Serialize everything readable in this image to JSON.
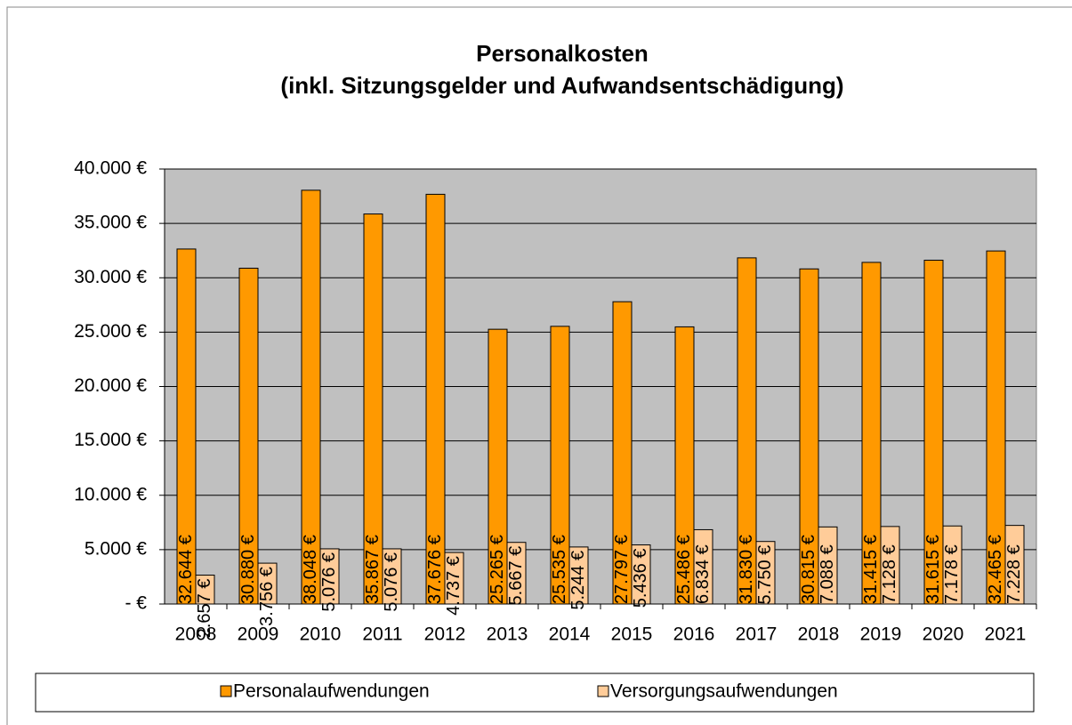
{
  "chart_data": {
    "type": "bar",
    "title": [
      "Personalkosten",
      "(inkl. Sitzungsgelder und Aufwandsentschädigung)"
    ],
    "categories": [
      "2008",
      "2009",
      "2010",
      "2011",
      "2012",
      "2013",
      "2014",
      "2015",
      "2016",
      "2017",
      "2018",
      "2019",
      "2020",
      "2021"
    ],
    "series": [
      {
        "name": "Personalaufwendungen",
        "color": "#ff9900",
        "values": [
          32644,
          30880,
          38048,
          35867,
          37676,
          25265,
          25535,
          27797,
          25486,
          31830,
          30815,
          31415,
          31615,
          32465
        ],
        "value_labels": [
          "32.644 €",
          "30.880 €",
          "38.048 €",
          "35.867 €",
          "37.676 €",
          "25.265 €",
          "25.535 €",
          "27.797 €",
          "25.486 €",
          "31.830 €",
          "30.815 €",
          "31.415 €",
          "31.615 €",
          "32.465 €"
        ]
      },
      {
        "name": "Versorgungsaufwendungen",
        "color": "#ffcc99",
        "values": [
          2657,
          3756,
          5076,
          5076,
          4737,
          5667,
          5244,
          5436,
          6834,
          5750,
          7088,
          7128,
          7178,
          7228
        ],
        "value_labels": [
          "2.657 €",
          "3.756 €",
          "5.076 €",
          "5.076 €",
          "4.737 €",
          "5.667 €",
          "5.244 €",
          "5.436 €",
          "6.834 €",
          "5.750 €",
          "7.088 €",
          "7.128 €",
          "7.178 €",
          "7.228 €"
        ]
      }
    ],
    "ylim": [
      0,
      40000
    ],
    "yticks": [
      {
        "value": 0,
        "label": "-  €"
      },
      {
        "value": 5000,
        "label": "5.000 €"
      },
      {
        "value": 10000,
        "label": "10.000 €"
      },
      {
        "value": 15000,
        "label": "15.000 €"
      },
      {
        "value": 20000,
        "label": "20.000 €"
      },
      {
        "value": 25000,
        "label": "25.000 €"
      },
      {
        "value": 30000,
        "label": "30.000 €"
      },
      {
        "value": 35000,
        "label": "35.000 €"
      },
      {
        "value": 40000,
        "label": "40.000 €"
      }
    ],
    "grid": true,
    "plot_background": "#c0c0c0",
    "legend": "bottom"
  }
}
